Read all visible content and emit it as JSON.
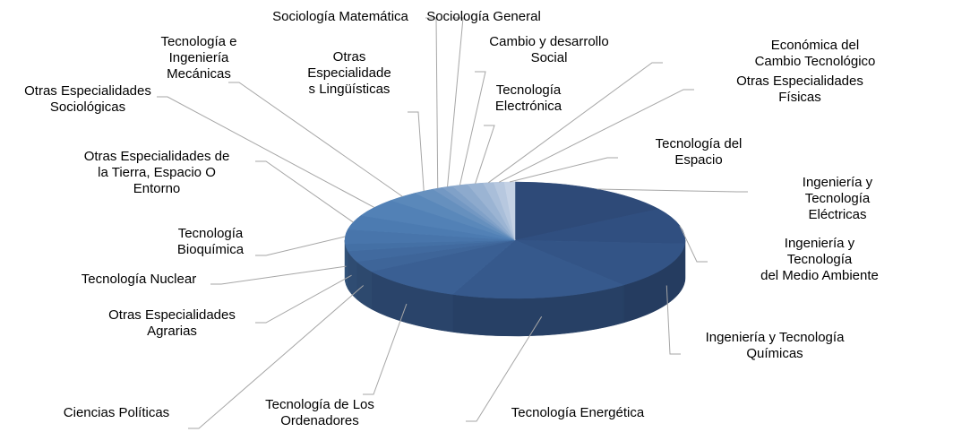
{
  "chart_data": {
    "type": "pie3d",
    "categories": [
      "Ingeniería y Tecnología\nEléctricas",
      "Ingeniería y Tecnología\ndel Medio Ambiente",
      "Ingeniería y Tecnología\nQuímicas",
      "Tecnología Energética",
      "Tecnología de Los\nOrdenadores",
      "Ciencias Políticas",
      "Otras Especialidades\nAgrarias",
      "Tecnología Nuclear",
      "Tecnología\nBioquímica",
      "Otras Especialidades de\nla Tierra, Espacio O\nEntorno",
      "Otras Especialidades\nSociológicas",
      "Tecnología e\nIngeniería\nMecánicas",
      "Otras\nEspecialidade\ns Lingüísticas",
      "Sociología Matemática",
      "Sociología General",
      "Cambio y desarrollo\nSocial",
      "Tecnología\nElectrónica",
      "Económica del Cambio Tecnológico",
      "Otras Especialidades\nFísicas",
      "Tecnología del\nEspacio"
    ],
    "values": [
      16,
      10,
      13,
      17,
      10,
      3,
      3,
      2,
      4,
      4,
      5,
      3,
      2,
      1,
      1,
      1.5,
      1.5,
      1,
      1,
      1
    ],
    "colors": [
      "#2e4a78",
      "#304f80",
      "#335486",
      "#36598c",
      "#3a5f93",
      "#3e6599",
      "#416a9f",
      "#4470a5",
      "#4875ab",
      "#4c7bb1",
      "#5281b6",
      "#5a88ba",
      "#6690be",
      "#7398c3",
      "#80a1c8",
      "#8daacd",
      "#9bb4d3",
      "#a9bed9",
      "#b7c8df",
      "#c5d2e5"
    ]
  }
}
